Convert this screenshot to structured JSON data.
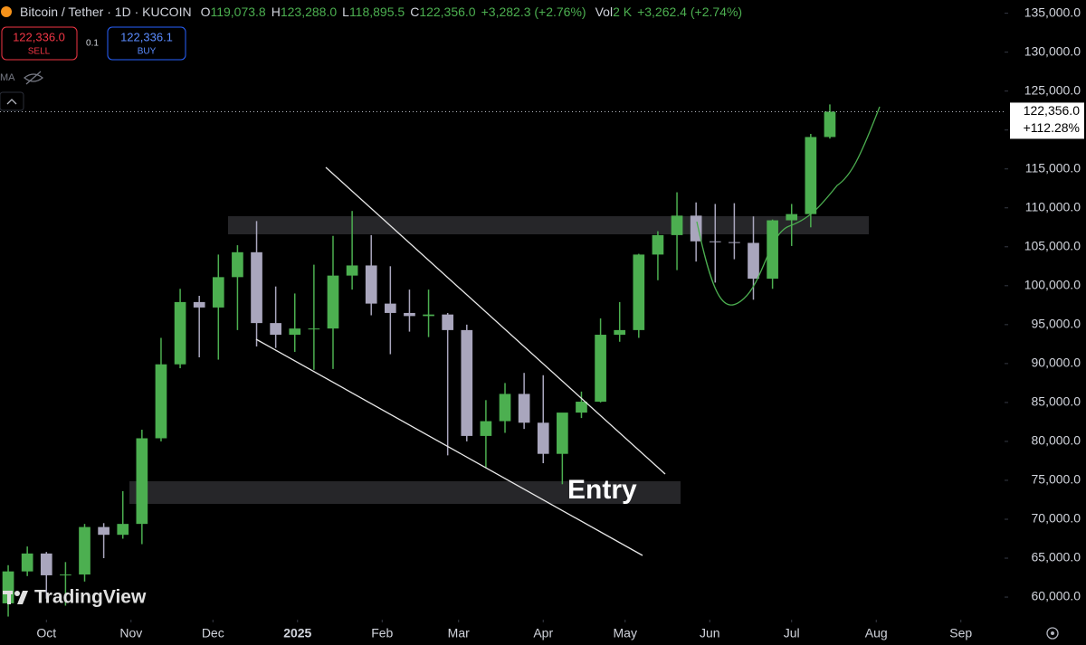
{
  "chart_data": {
    "type": "candlestick",
    "title": "Bitcoin / Tether · 1D · KUCOIN",
    "x": [
      -14,
      -7,
      0,
      7,
      14,
      21,
      28,
      35,
      42,
      49,
      56,
      63,
      70,
      77,
      84,
      91,
      98,
      105,
      112,
      119,
      126,
      133,
      140,
      147,
      154,
      161,
      168,
      175,
      182,
      189,
      196,
      203,
      210,
      217,
      224,
      231,
      238,
      245,
      252,
      259,
      266,
      273,
      280,
      287
    ],
    "open": [
      59200,
      63300,
      65600,
      62800,
      62900,
      69000,
      68000,
      69400,
      80400,
      89900,
      97900,
      97200,
      101100,
      104300,
      95200,
      93700,
      94500,
      94500,
      101300,
      102600,
      97700,
      96500,
      96100,
      96300,
      94300,
      80700,
      82600,
      86100,
      82400,
      78400,
      83700,
      85100,
      93700,
      94300,
      104000,
      106500,
      109000,
      105700,
      105600,
      105500,
      100900,
      108400,
      109200,
      119100
    ],
    "high": [
      64100,
      66500,
      65800,
      64500,
      69400,
      69500,
      73600,
      81500,
      93300,
      99600,
      98700,
      104000,
      105200,
      108300,
      99900,
      99000,
      102700,
      106400,
      109600,
      106500,
      102500,
      99500,
      99500,
      96500,
      95000,
      85300,
      87500,
      88800,
      88500,
      83600,
      86400,
      95800,
      97900,
      104100,
      107000,
      112000,
      110700,
      110500,
      110600,
      108900,
      108500,
      110500,
      119500,
      123288
    ],
    "low": [
      57500,
      62700,
      59800,
      58900,
      62000,
      65000,
      67500,
      66800,
      80000,
      89400,
      90800,
      90500,
      94300,
      92200,
      92000,
      91500,
      89200,
      89300,
      99500,
      96200,
      91200,
      94100,
      93400,
      78200,
      80000,
      76600,
      81100,
      81600,
      77200,
      74500,
      83000,
      85000,
      92800,
      93300,
      100700,
      102000,
      103100,
      100400,
      103400,
      98200,
      99600,
      105100,
      107500,
      118895.5
    ],
    "close": [
      63300,
      65600,
      62800,
      62900,
      69000,
      68000,
      69400,
      80400,
      89900,
      97900,
      97200,
      101100,
      104300,
      95200,
      93700,
      94500,
      94500,
      101300,
      102600,
      97700,
      96500,
      96100,
      96300,
      94300,
      80700,
      82600,
      86100,
      82400,
      78400,
      83700,
      85100,
      93700,
      94300,
      104000,
      106500,
      109000,
      105700,
      105600,
      105500,
      100900,
      108400,
      109200,
      119100,
      122356
    ],
    "up_color": "#4caf50",
    "down_color": "#a9a6bd",
    "xlim": [
      -17,
      351
    ],
    "xticks": [
      {
        "value": 0,
        "label": "Oct"
      },
      {
        "value": 31,
        "label": "Nov"
      },
      {
        "value": 61,
        "label": "Dec"
      },
      {
        "value": 92,
        "label": "2025"
      },
      {
        "value": 123,
        "label": "Feb"
      },
      {
        "value": 151,
        "label": "Mar"
      },
      {
        "value": 182,
        "label": "Apr"
      },
      {
        "value": 212,
        "label": "May"
      },
      {
        "value": 243,
        "label": "Jun"
      },
      {
        "value": 273,
        "label": "Jul"
      },
      {
        "value": 304,
        "label": "Aug"
      },
      {
        "value": 335,
        "label": "Sep"
      }
    ],
    "ylim": [
      57100,
      136700
    ],
    "yticks": [
      {
        "value": 60000,
        "label": "60,000.0"
      },
      {
        "value": 65000,
        "label": "65,000.0"
      },
      {
        "value": 70000,
        "label": "70,000.0"
      },
      {
        "value": 75000,
        "label": "75,000.0"
      },
      {
        "value": 80000,
        "label": "80,000.0"
      },
      {
        "value": 85000,
        "label": "85,000.0"
      },
      {
        "value": 90000,
        "label": "90,000.0"
      },
      {
        "value": 95000,
        "label": "95,000.0"
      },
      {
        "value": 100000,
        "label": "100,000.0"
      },
      {
        "value": 105000,
        "label": "105,000.0"
      },
      {
        "value": 110000,
        "label": "110,000.0"
      },
      {
        "value": 115000,
        "label": "115,000.0"
      },
      {
        "value": 120000,
        "label": "120,000.0"
      },
      {
        "value": 125000,
        "label": "125,000.0"
      },
      {
        "value": 130000,
        "label": "130,000.0"
      },
      {
        "value": 135000,
        "label": "135,000.0"
      }
    ],
    "last_price": {
      "value": 122356,
      "label": "122,356.0",
      "change": "+112.28%"
    },
    "annotation": "Entry"
  },
  "header": {
    "o_label": "O",
    "o": "119,073.8",
    "h_label": "H",
    "h": "123,288.0",
    "l_label": "L",
    "l": "118,895.5",
    "c_label": "C",
    "c": "122,356.0",
    "change": "+3,282.3 (+2.76%)",
    "vol_label": "Vol",
    "vol": "2 K",
    "vol_change": "+3,262.4 (+2.74%)"
  },
  "trade": {
    "sell_price": "122,336.0",
    "sell": "SELL",
    "qty": "0.1",
    "buy_price": "122,336.1",
    "buy": "BUY"
  },
  "indicator": "MA",
  "brand": "TradingView"
}
